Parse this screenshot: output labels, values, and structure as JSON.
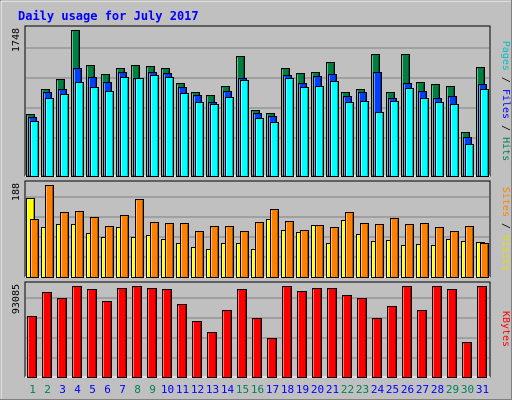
{
  "title": "Daily usage for July 2017",
  "colors": {
    "background": "#c0c0c0",
    "border": "#000000",
    "title": "#0000ff",
    "hits": "#008040",
    "files": "#0040ff",
    "pages": "#00ffff",
    "visits": "#ffff00",
    "sites": "#ff8000",
    "kbytes": "#ff0000",
    "weekend_label": "#00805c",
    "weekday_label": "#0000ff"
  },
  "legend": {
    "top": [
      {
        "text": "Pages",
        "color": "#00c0c0"
      },
      {
        "text": " / ",
        "color": "#000000"
      },
      {
        "text": "Files",
        "color": "#0000ff"
      },
      {
        "text": " / ",
        "color": "#000000"
      },
      {
        "text": "Hits",
        "color": "#00805c"
      }
    ],
    "middle": [
      {
        "text": "Sites",
        "color": "#ff8000"
      },
      {
        "text": " / ",
        "color": "#000000"
      },
      {
        "text": "Visits",
        "color": "#e0e000"
      }
    ],
    "bottom": [
      {
        "text": "KBytes",
        "color": "#ff0000"
      }
    ]
  },
  "chart_data": {
    "type": "bar",
    "title": "Daily usage for July 2017",
    "categories": [
      "1",
      "2",
      "3",
      "4",
      "5",
      "6",
      "7",
      "8",
      "9",
      "10",
      "11",
      "12",
      "13",
      "14",
      "15",
      "16",
      "17",
      "18",
      "19",
      "20",
      "21",
      "22",
      "23",
      "24",
      "25",
      "26",
      "27",
      "28",
      "29",
      "30",
      "31"
    ],
    "weekend_days": [
      "1",
      "2",
      "8",
      "9",
      "15",
      "16",
      "22",
      "23",
      "29",
      "30"
    ],
    "panels": [
      {
        "name": "usage",
        "ymax_label": "1748",
        "ylim": [
          0,
          1748
        ],
        "series": [
          {
            "name": "Hits",
            "values": [
              738,
              1038,
              1162,
              1748,
              1334,
              1219,
              1292,
              1329,
              1314,
              1299,
              1108,
              1003,
              969,
              1078,
              1437,
              791,
              753,
              1299,
              1235,
              1246,
              1363,
              1003,
              1043,
              1466,
              1004,
              1463,
              1123,
              1097,
              1074,
              525,
              1309
            ]
          },
          {
            "name": "Files",
            "values": [
              704,
              1002,
              1036,
              1296,
              1190,
              1130,
              1250,
              1177,
              1244,
              1238,
              1066,
              965,
              891,
              1021,
              1172,
              756,
              713,
              1214,
              1115,
              1197,
              1226,
              954,
              1001,
              1244,
              931,
              1109,
              1022,
              930,
              963,
              465,
              1103
            ]
          },
          {
            "name": "Pages",
            "values": [
              655,
              930,
              976,
              1127,
              1065,
              1012,
              1186,
              1177,
              1206,
              1182,
              997,
              883,
              860,
              951,
              1144,
              692,
              651,
              1169,
              1064,
              1078,
              1143,
              882,
              895,
              769,
              896,
              1048,
              933,
              882,
              860,
              388,
              1045
            ]
          }
        ]
      },
      {
        "name": "visits",
        "ymax_label": "188",
        "ylim": [
          0,
          188
        ],
        "series": [
          {
            "name": "Visits",
            "values": [
              161,
              103,
              108,
              108,
              90,
              82,
              103,
              82,
              86,
              78,
              69,
              62,
              57,
              69,
              69,
              57,
              118,
              97,
              91,
              106,
              70,
              116,
              87,
              74,
              75,
              66,
              68,
              66,
              78,
              74,
              71
            ]
          },
          {
            "name": "Sites",
            "values": [
              119,
              188,
              133,
              134,
              123,
              104,
              127,
              159,
              112,
              111,
              111,
              94,
              105,
              104,
              93,
              112,
              139,
              114,
              97,
              106,
              102,
              132,
              110,
              109,
              121,
              109,
              111,
              103,
              94,
              104,
              70
            ]
          }
        ]
      },
      {
        "name": "kbytes",
        "ymax_label": "93085",
        "ylim": [
          0,
          93085
        ],
        "series": [
          {
            "name": "KBytes",
            "values": [
              62028,
              87130,
              80926,
              93085,
              90324,
              77548,
              91013,
              93085,
              91013,
              89630,
              74791,
              57203,
              46169,
              68233,
              90324,
              60345,
              39662,
              93085,
              88258,
              91013,
              91013,
              83435,
              80926,
              60345,
              72379,
              93085,
              68233,
              93085,
              90324,
              35866,
              93085
            ]
          }
        ]
      }
    ]
  }
}
